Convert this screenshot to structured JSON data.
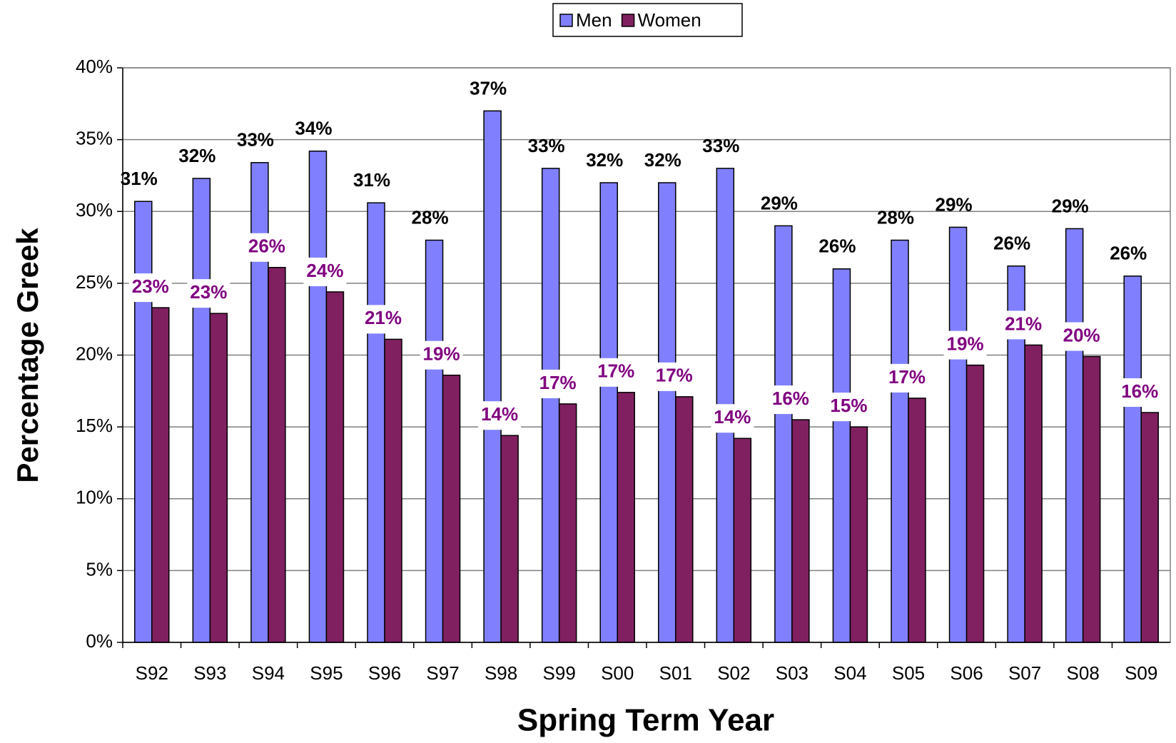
{
  "chart_data": {
    "type": "bar",
    "x_label": "Spring Term Year",
    "y_label": "Percentage Greek",
    "categories": [
      "S92",
      "S93",
      "S94",
      "S95",
      "S96",
      "S97",
      "S98",
      "S99",
      "S00",
      "S01",
      "S02",
      "S03",
      "S04",
      "S05",
      "S06",
      "S07",
      "S08",
      "S09"
    ],
    "series": [
      {
        "name": "Men",
        "color": "#8080ff",
        "values": [
          30.7,
          32.3,
          33.4,
          34.2,
          30.6,
          28.0,
          37.0,
          33.0,
          32.0,
          32.0,
          33.0,
          29.0,
          26.0,
          28.0,
          28.9,
          26.2,
          28.8,
          25.5
        ],
        "value_labels": [
          "31%",
          "32%",
          "33%",
          "34%",
          "31%",
          "28%",
          "37%",
          "33%",
          "32%",
          "32%",
          "33%",
          "29%",
          "26%",
          "28%",
          "29%",
          "26%",
          "29%",
          "26%"
        ]
      },
      {
        "name": "Women",
        "color": "#802060",
        "values": [
          23.3,
          22.9,
          26.1,
          24.4,
          21.1,
          18.6,
          14.4,
          16.6,
          17.4,
          17.1,
          14.2,
          15.5,
          15.0,
          17.0,
          19.3,
          20.7,
          19.9,
          16.0
        ],
        "value_labels": [
          "23%",
          "23%",
          "26%",
          "24%",
          "21%",
          "19%",
          "14%",
          "17%",
          "17%",
          "17%",
          "14%",
          "16%",
          "15%",
          "17%",
          "19%",
          "21%",
          "20%",
          "16%"
        ]
      }
    ],
    "ylim": [
      0,
      40
    ],
    "yticks": [
      {
        "value": 0,
        "label": "0%"
      },
      {
        "value": 5,
        "label": "5%"
      },
      {
        "value": 10,
        "label": "10%"
      },
      {
        "value": 15,
        "label": "15%"
      },
      {
        "value": 20,
        "label": "20%"
      },
      {
        "value": 25,
        "label": "25%"
      },
      {
        "value": 30,
        "label": "30%"
      },
      {
        "value": 35,
        "label": "35%"
      },
      {
        "value": 40,
        "label": "40%"
      }
    ],
    "grid": true,
    "legend": "top"
  }
}
